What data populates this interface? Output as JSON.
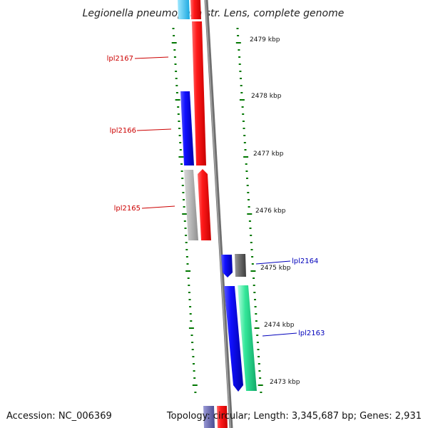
{
  "title": "Legionella pneumophila str. Lens, complete genome",
  "footer": {
    "accession": "Accession: NC_006369",
    "topology": "Topology: circular; Length: 3,345,687 bp; Genes: 2,931"
  },
  "scale_labels": [
    "2479 kbp",
    "2478 kbp",
    "2477 kbp",
    "2476 kbp",
    "2475 kbp",
    "2474 kbp",
    "2473 kbp"
  ],
  "genes": [
    {
      "label": "lpl2167",
      "color": "#cc0000"
    },
    {
      "label": "lpl2166",
      "color": "#cc0000"
    },
    {
      "label": "lpl2165",
      "color": "#cc0000"
    },
    {
      "label": "lpl2164",
      "color": "#0000bb"
    },
    {
      "label": "lpl2163",
      "color": "#0000bb"
    }
  ],
  "colors": {
    "backbone": "#808080",
    "tick": "#007700",
    "forward_strand": "#ff0000",
    "reverse_strand": "#0000ff",
    "grey_feature": "#b4b4b4",
    "dark_grey_feature": "#6e6e6e",
    "teal_feature": "#33e699"
  }
}
